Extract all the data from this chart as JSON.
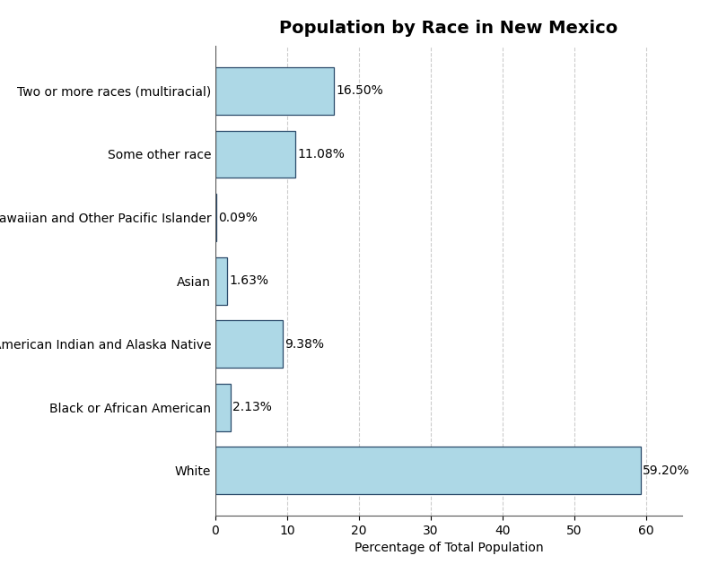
{
  "title": "Population by Race in New Mexico",
  "xlabel": "Percentage of Total Population",
  "categories": [
    "White",
    "Black or African American",
    "American Indian and Alaska Native",
    "Asian",
    "Native Hawaiian and Other Pacific Islander",
    "Some other race",
    "Two or more races (multiracial)"
  ],
  "values": [
    59.2,
    2.13,
    9.38,
    1.63,
    0.09,
    11.08,
    16.5
  ],
  "bar_color": "#add8e6",
  "bar_edgecolor": "#2b4b6b",
  "label_color": "#000000",
  "background_color": "#ffffff",
  "axes_facecolor": "#f0f0f0",
  "grid_color": "#cccccc",
  "title_fontsize": 14,
  "label_fontsize": 10,
  "tick_fontsize": 10,
  "xlim": [
    0,
    65
  ],
  "xticks": [
    0,
    10,
    20,
    30,
    40,
    50,
    60
  ]
}
